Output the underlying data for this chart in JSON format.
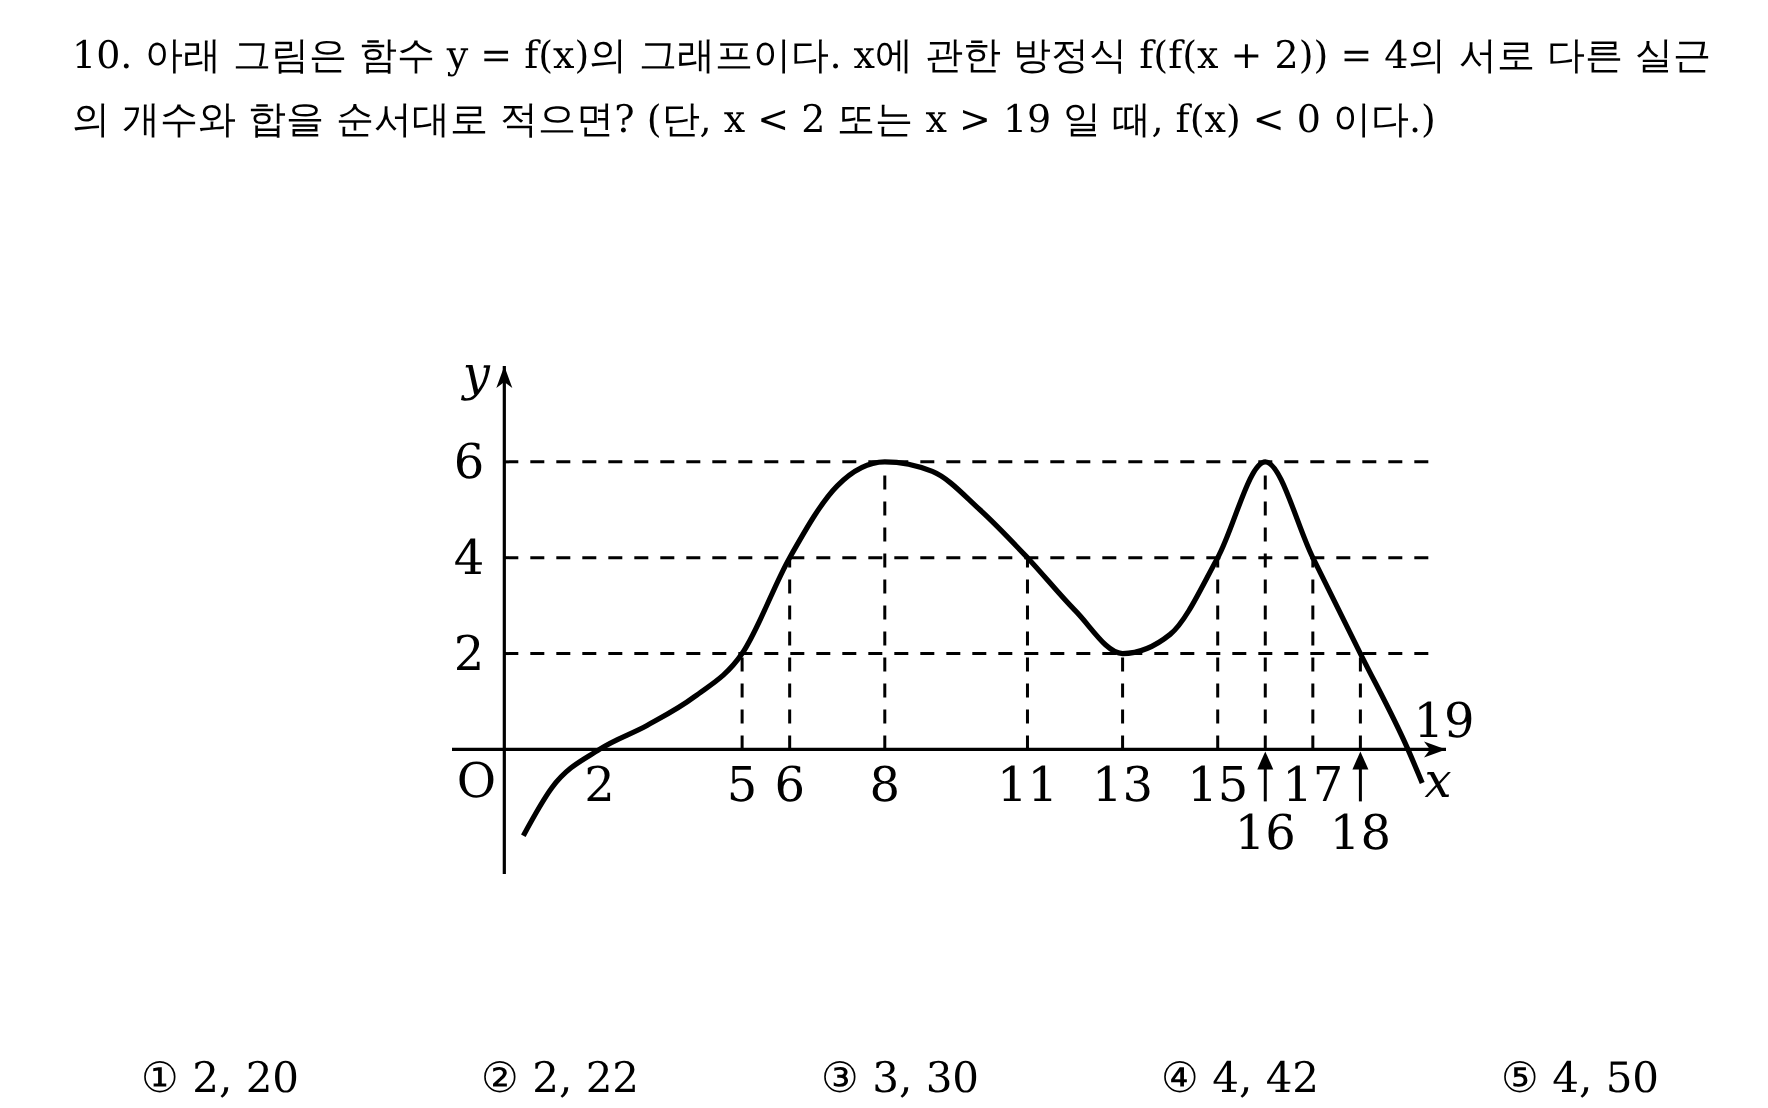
{
  "chart_data": {
    "type": "line",
    "title": "10. 아래 그림은 함수 y = f(x)의 그래프이다. x에 관한 방정식 f(f(x + 2)) = 4의 서로 다른 실근의 개수와 합을 순서대로 적으면? (단, x < 2 또는 x > 19 일 때, f(x) < 0 이다.)",
    "xlabel": "x",
    "ylabel": "y",
    "x": [
      0.4,
      1,
      2,
      3,
      4,
      5,
      6,
      7,
      8,
      9,
      10,
      11,
      12,
      13,
      14,
      15,
      16,
      17,
      18,
      19,
      19.3
    ],
    "series": [
      {
        "color": "#000000",
        "values": [
          -1.8,
          -0.8,
          0,
          0.5,
          1.1,
          2,
          4,
          5.5,
          6,
          5.8,
          5,
          4,
          2.9,
          2,
          2.4,
          4,
          6,
          4,
          2,
          0,
          -0.7
        ]
      }
    ],
    "xlim": [
      -1.1,
      19.8
    ],
    "ylim": [
      -2.6,
      8
    ],
    "xticks": [
      2,
      5,
      6,
      8,
      11,
      13,
      15,
      17
    ],
    "yticks": [
      2,
      4,
      6
    ],
    "ref_lines": [
      {
        "axis": "y",
        "value": 2,
        "line_style": "dashed"
      },
      {
        "axis": "y",
        "value": 4,
        "line_style": "dashed"
      },
      {
        "axis": "y",
        "value": 6,
        "line_style": "dashed"
      },
      {
        "axis": "x",
        "value": 5,
        "line_style": "dashed"
      },
      {
        "axis": "x",
        "value": 6,
        "line_style": "dashed"
      },
      {
        "axis": "x",
        "value": 8,
        "line_style": "dashed"
      },
      {
        "axis": "x",
        "value": 11,
        "line_style": "dashed"
      },
      {
        "axis": "x",
        "value": 13,
        "line_style": "dashed"
      },
      {
        "axis": "x",
        "value": 15,
        "line_style": "dashed"
      },
      {
        "axis": "x",
        "value": 16,
        "line_style": "dashed"
      },
      {
        "axis": "x",
        "value": 17,
        "line_style": "dashed"
      },
      {
        "axis": "x",
        "value": 18,
        "line_style": "dashed"
      }
    ],
    "annotations": [
      "O",
      {
        "text": "16",
        "x": 16,
        "y": 0
      },
      {
        "text": "18",
        "x": 18,
        "y": 0
      },
      {
        "text": "19",
        "x": 19,
        "y": 0
      },
      "① 2, 20",
      "② 2, 22",
      "③ 3, 30",
      "④ 4, 42",
      "⑤ 4, 50"
    ],
    "grid": false,
    "marker": "none",
    "line_style": "solid"
  }
}
